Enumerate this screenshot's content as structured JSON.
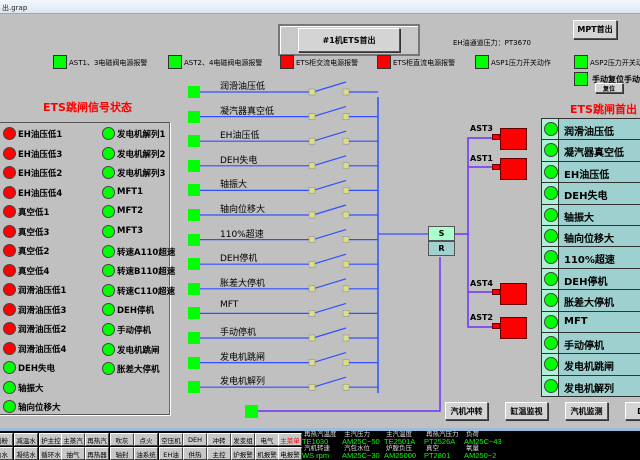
{
  "window": {
    "title": "出.grap"
  },
  "header": {
    "title": "#1机ETS首出",
    "eh_pressure": "EH油通道压力：PT3670",
    "mpt_button": "MPT首出"
  },
  "alarms": [
    {
      "label": "AST1、3电磁阀电源报警",
      "color": "#00ff00"
    },
    {
      "label": "AST2、4电磁阀电源报警",
      "color": "#00ff00"
    },
    {
      "label": "ETS柜交流电源报警",
      "color": "#ff0000"
    },
    {
      "label": "ETS柜直流电源报警",
      "color": "#ff0000"
    },
    {
      "label": "ASP1压力开关动作",
      "color": "#00ff00"
    },
    {
      "label": "ASP2压力开关动作",
      "color": "#00ff00"
    }
  ],
  "manual_reset": {
    "label": "手动复位手动",
    "button": "复位",
    "color": "#00ff00"
  },
  "signal_panel": {
    "title": "ETS跳闸信号状态",
    "left": [
      {
        "label": "EH油压低1",
        "color": "#ff0000"
      },
      {
        "label": "EH油压低3",
        "color": "#ff0000"
      },
      {
        "label": "EH油压低2",
        "color": "#ff0000"
      },
      {
        "label": "EH油压低4",
        "color": "#ff0000"
      },
      {
        "label": "真空低1",
        "color": "#ff0000"
      },
      {
        "label": "真空低3",
        "color": "#ff0000"
      },
      {
        "label": "真空低2",
        "color": "#ff0000"
      },
      {
        "label": "真空低4",
        "color": "#ff0000"
      },
      {
        "label": "润滑油压低1",
        "color": "#ff0000"
      },
      {
        "label": "润滑油压低3",
        "color": "#ff0000"
      },
      {
        "label": "润滑油压低2",
        "color": "#ff0000"
      },
      {
        "label": "润滑油压低4",
        "color": "#ff0000"
      },
      {
        "label": "DEH失电",
        "color": "#00ff00"
      },
      {
        "label": "轴振大",
        "color": "#00ff00"
      },
      {
        "label": "轴向位移大",
        "color": "#00ff00"
      }
    ],
    "right": [
      {
        "label": "发电机解列1",
        "color": "#00ff00"
      },
      {
        "label": "发电机解列2",
        "color": "#00ff00"
      },
      {
        "label": "发电机解列3",
        "color": "#00ff00"
      },
      {
        "label": "MFT1",
        "color": "#00ff00"
      },
      {
        "label": "MFT2",
        "color": "#00ff00"
      },
      {
        "label": "MFT3",
        "color": "#00ff00"
      },
      {
        "label": "转速A110超速",
        "color": "#00ff00"
      },
      {
        "label": "转速B110超速",
        "color": "#00ff00"
      },
      {
        "label": "转速C110超速",
        "color": "#00ff00"
      },
      {
        "label": "DEH停机",
        "color": "#00ff00"
      },
      {
        "label": "手动停机",
        "color": "#00ff00"
      },
      {
        "label": "发电机跳闸",
        "color": "#00ff00"
      },
      {
        "label": "胀差大停机",
        "color": "#00ff00"
      }
    ]
  },
  "logic": {
    "inputs": [
      "润滑油压低",
      "凝汽器真空低",
      "EH油压低",
      "DEH失电",
      "轴振大",
      "轴向位移大",
      "110%超速",
      "DEH停机",
      "胀差大停机",
      "MFT",
      "手动停机",
      "发电机跳闸",
      "发电机解列"
    ],
    "sr": {
      "s": "S",
      "r": "R"
    },
    "ast": [
      {
        "label": "AST3",
        "color": "#ff0000"
      },
      {
        "label": "AST1",
        "color": "#ff0000"
      },
      {
        "label": "AST4",
        "color": "#ff0000"
      },
      {
        "label": "AST2",
        "color": "#ff0000"
      }
    ]
  },
  "first_out": {
    "title": "ETS跳闸首出",
    "items": [
      "润滑油压低",
      "凝汽器真空低",
      "EH油压低",
      "DEH失电",
      "轴振大",
      "轴向位移大",
      "110%超速",
      "DEH停机",
      "胀差大停机",
      "MFT",
      "手动停机",
      "发电机跳闸",
      "发电机解列"
    ],
    "color": "#00ff00"
  },
  "nav_buttons": [
    "汽机冲转",
    "缸温监视",
    "汽机监测",
    "DEH"
  ],
  "bottom_nav": {
    "row1": [
      "制粉",
      "减温水",
      "护主控",
      "主蒸汽",
      "再热汽",
      "吹灰",
      "点火",
      "空压机",
      "DEH",
      "冲转",
      "发变组",
      "电气",
      "主菜单"
    ],
    "row2": [
      "给水",
      "凝结水",
      "循环水",
      "抽气",
      "再热器",
      "轴封",
      "油系统",
      "EH油",
      "供热",
      "主控",
      "炉报警",
      "机报警",
      "电报警"
    ]
  },
  "readouts": [
    {
      "label": "再热汽温度",
      "value": "TE1030"
    },
    {
      "label": "主汽压力",
      "value": "AM25C~50"
    },
    {
      "label": "主汽温度",
      "value": "TE2501A"
    },
    {
      "label": "再热汽压力",
      "value": "PT2526A"
    },
    {
      "label": "负荷",
      "value": "AM25C~43"
    },
    {
      "label": "汽机转速",
      "value": "WS rpm"
    },
    {
      "label": "汽包水位",
      "value": "AM25C~30"
    },
    {
      "label": "炉膛负压",
      "value": "AM25000"
    },
    {
      "label": "真空",
      "value": "PT2801"
    },
    {
      "label": "氧量",
      "value": "AM250~2"
    }
  ]
}
